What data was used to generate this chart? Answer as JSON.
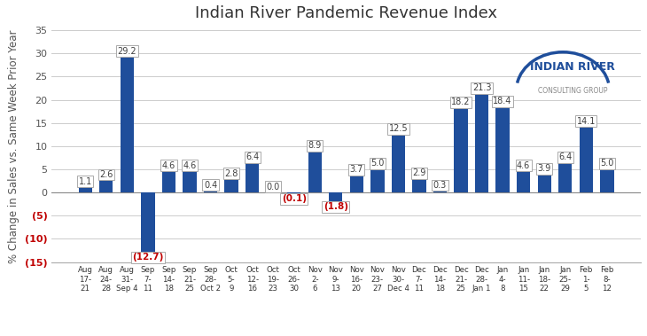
{
  "title": "Indian River Pandemic Revenue Index",
  "ylabel": "% Change in Sales vs. Same Week Prior Year",
  "categories": [
    "Aug\n17-\n21",
    "Aug\n24-\n28",
    "Aug\n31-\nSep 4",
    "Sep\n7-\n11",
    "Sep\n14-\n18",
    "Sep\n21-\n25",
    "Sep\n28-\nOct 2",
    "Oct\n5-\n9",
    "Oct\n12-\n16",
    "Oct\n19-\n23",
    "Oct\n26-\n30",
    "Nov\n2-\n6",
    "Nov\n9-\n13",
    "Nov\n16-\n20",
    "Nov\n23-\n27",
    "Nov\n30-\nDec 4",
    "Dec\n7-\n11",
    "Dec\n14-\n18",
    "Dec\n21-\n25",
    "Dec\n28-\nJan 1",
    "Jan\n4-\n8",
    "Jan\n11-\n15",
    "Jan\n18-\n22",
    "Jan\n25-\n29",
    "Feb\n1-\n5",
    "Feb\n8-\n12"
  ],
  "values": [
    1.1,
    2.6,
    29.2,
    -12.7,
    4.6,
    4.6,
    0.4,
    2.8,
    6.4,
    0.0,
    -0.1,
    8.9,
    -1.8,
    3.7,
    5.0,
    12.5,
    2.9,
    0.3,
    18.2,
    21.3,
    18.4,
    4.6,
    3.9,
    6.4,
    14.1,
    5.0
  ],
  "bar_color": "#1F4E9B",
  "label_color_positive": "#404040",
  "label_color_negative": "#C00000",
  "ylim": [
    -15,
    35
  ],
  "yticks": [
    -15,
    -10,
    -5,
    0,
    5,
    10,
    15,
    20,
    25,
    30,
    35
  ],
  "background_color": "#FFFFFF",
  "grid_color": "#CCCCCC",
  "title_fontsize": 13,
  "axis_label_fontsize": 8.5,
  "logo_main": "INDIAN RIVER",
  "logo_sub": "CONSULTING GROUP"
}
